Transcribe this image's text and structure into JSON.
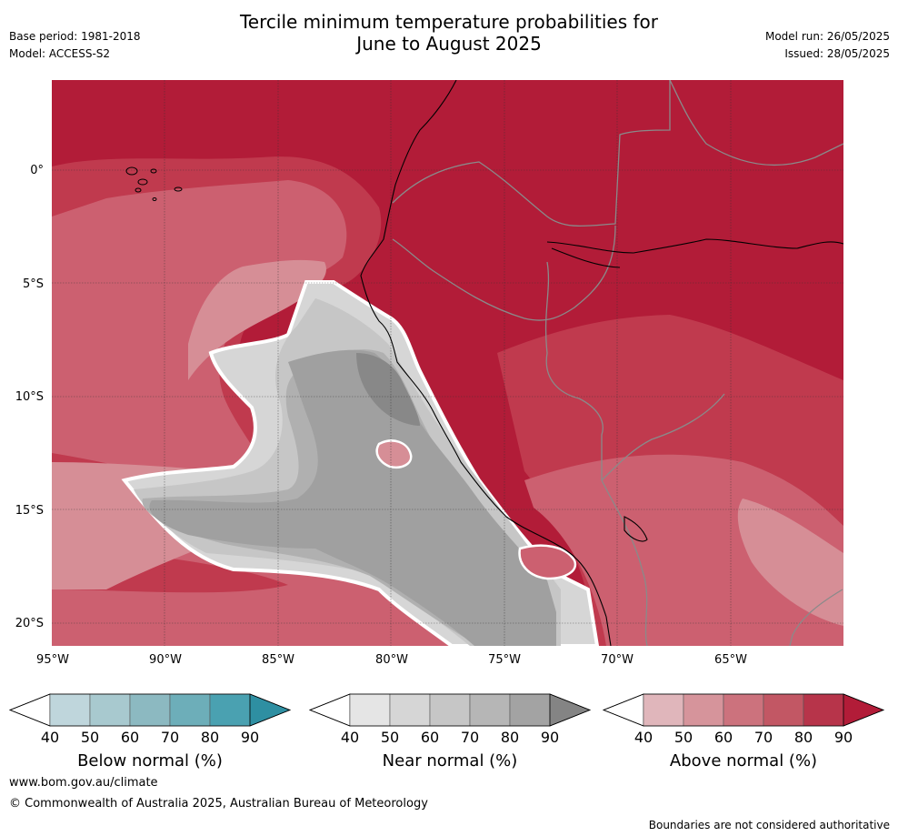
{
  "header": {
    "base_period": "Base period: 1981-2018",
    "model": "Model: ACCESS-S2",
    "title_line1": "Tercile minimum temperature probabilities for",
    "title_line2": "June to August 2025",
    "model_run": "Model run: 26/05/2025",
    "issued": "Issued: 28/05/2025"
  },
  "map": {
    "extent": {
      "lon_min": -95,
      "lon_max": -60,
      "lat_min": -21,
      "lat_max": 4
    },
    "lat_labels": [
      "0°",
      "5°S",
      "10°S",
      "15°S",
      "20°S"
    ],
    "lat_values": [
      0,
      -5,
      -10,
      -15,
      -20
    ],
    "lon_labels": [
      "95°W",
      "90°W",
      "85°W",
      "80°W",
      "75°W",
      "70°W",
      "65°W"
    ],
    "lon_values": [
      -95,
      -90,
      -85,
      -80,
      -75,
      -70,
      -65
    ],
    "colors": {
      "above_90": "#b21c38",
      "above_80": "#c03a4e",
      "above_70": "#cc6070",
      "above_60": "#d68e96",
      "near_50": "#d6d6d6",
      "near_60": "#c6c6c6",
      "near_70": "#b0b0b0",
      "near_80": "#a0a0a0",
      "near_90": "#888888"
    }
  },
  "legends": [
    {
      "title": "Below normal (%)",
      "ticks": [
        "40",
        "50",
        "60",
        "70",
        "80",
        "90"
      ],
      "colors": [
        "#ffffff",
        "#bfd6dc",
        "#a8c9cf",
        "#8cb9c1",
        "#6daeb9",
        "#4aa1b1",
        "#2e8fa2"
      ]
    },
    {
      "title": "Near normal (%)",
      "ticks": [
        "40",
        "50",
        "60",
        "70",
        "80",
        "90"
      ],
      "colors": [
        "#ffffff",
        "#e5e5e5",
        "#d6d6d6",
        "#c6c6c6",
        "#b6b6b6",
        "#a3a3a3",
        "#848484"
      ]
    },
    {
      "title": "Above normal (%)",
      "ticks": [
        "40",
        "50",
        "60",
        "70",
        "80",
        "90"
      ],
      "colors": [
        "#ffffff",
        "#e0b6bb",
        "#d6949b",
        "#cc727d",
        "#c25764",
        "#b7344a",
        "#b21c38"
      ]
    }
  ],
  "footer": {
    "url": "www.bom.gov.au/climate",
    "copyright": "© Commonwealth of Australia 2025, Australian Bureau of Meteorology",
    "disclaimer": "Boundaries are not considered authoritative"
  }
}
